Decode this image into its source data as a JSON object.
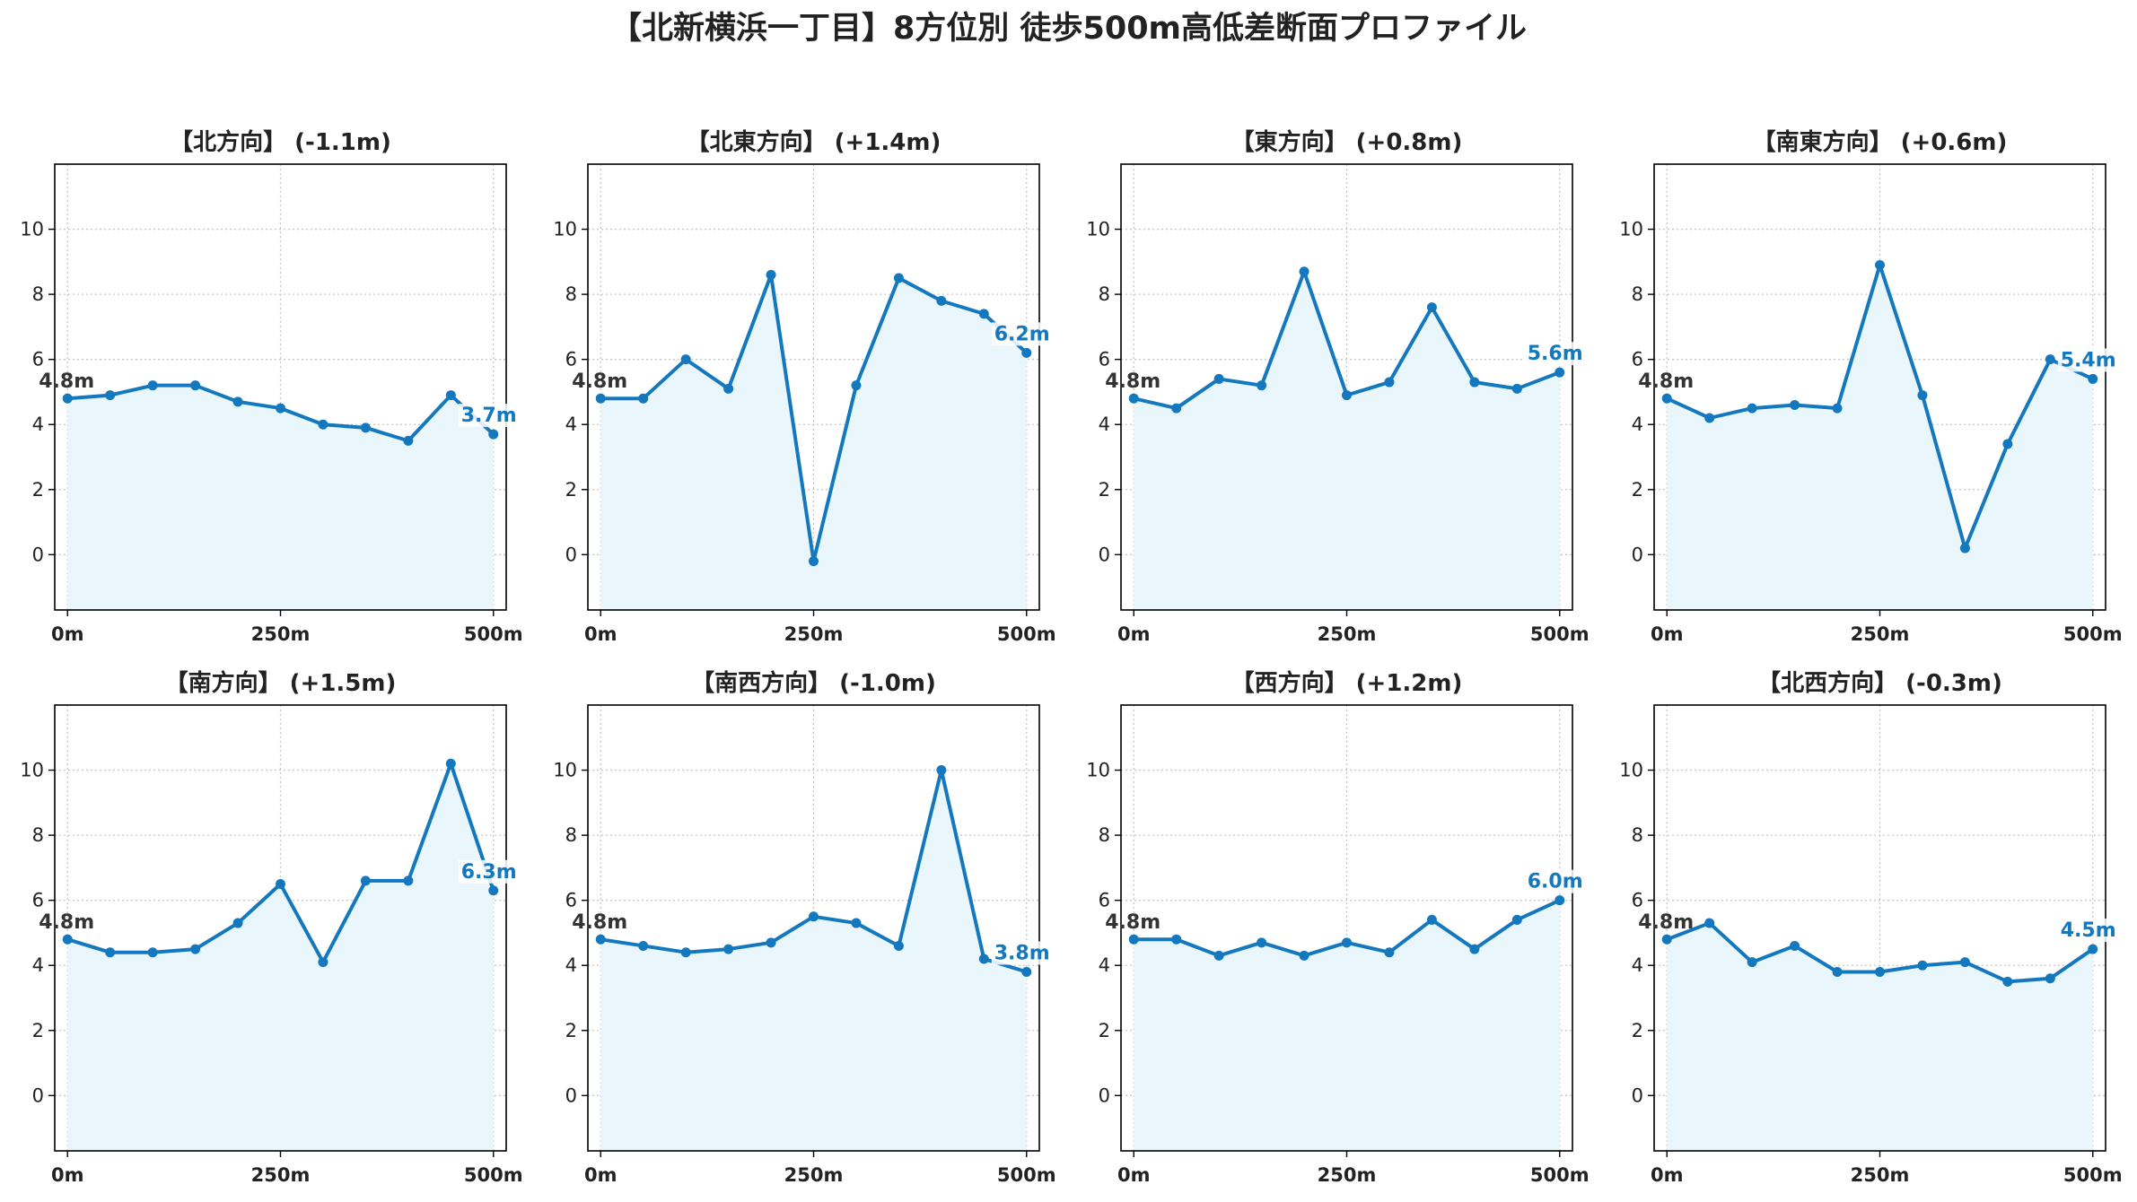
{
  "title": "【北新横浜一丁目】8方位別 徒歩500m高低差断面プロファイル",
  "colors": {
    "line": "#1478be",
    "fill": "#e9f6fb",
    "grid": "#c8c8c8",
    "start_label": "#333333"
  },
  "chart_data": [
    {
      "type": "area",
      "title": "【北方向】 (-1.1m)",
      "x": [
        0,
        50,
        100,
        150,
        200,
        250,
        300,
        350,
        400,
        450,
        500
      ],
      "values": [
        4.8,
        4.9,
        5.2,
        5.2,
        4.7,
        4.5,
        4.0,
        3.9,
        3.5,
        4.9,
        3.7
      ],
      "start_label": "4.8m",
      "end_label": "3.7m"
    },
    {
      "type": "area",
      "title": "【北東方向】 (+1.4m)",
      "x": [
        0,
        50,
        100,
        150,
        200,
        250,
        300,
        350,
        400,
        450,
        500
      ],
      "values": [
        4.8,
        4.8,
        6.0,
        5.1,
        8.6,
        -0.2,
        5.2,
        8.5,
        7.8,
        7.4,
        6.2
      ],
      "start_label": "4.8m",
      "end_label": "6.2m"
    },
    {
      "type": "area",
      "title": "【東方向】 (+0.8m)",
      "x": [
        0,
        50,
        100,
        150,
        200,
        250,
        300,
        350,
        400,
        450,
        500
      ],
      "values": [
        4.8,
        4.5,
        5.4,
        5.2,
        8.7,
        4.9,
        5.3,
        7.6,
        5.3,
        5.1,
        5.6
      ],
      "start_label": "4.8m",
      "end_label": "5.6m"
    },
    {
      "type": "area",
      "title": "【南東方向】 (+0.6m)",
      "x": [
        0,
        50,
        100,
        150,
        200,
        250,
        300,
        350,
        400,
        450,
        500
      ],
      "values": [
        4.8,
        4.2,
        4.5,
        4.6,
        4.5,
        8.9,
        4.9,
        0.2,
        3.4,
        6.0,
        5.4
      ],
      "start_label": "4.8m",
      "end_label": "5.4m"
    },
    {
      "type": "area",
      "title": "【南方向】 (+1.5m)",
      "x": [
        0,
        50,
        100,
        150,
        200,
        250,
        300,
        350,
        400,
        450,
        500
      ],
      "values": [
        4.8,
        4.4,
        4.4,
        4.5,
        5.3,
        6.5,
        4.1,
        6.6,
        6.6,
        10.2,
        6.3
      ],
      "start_label": "4.8m",
      "end_label": "6.3m"
    },
    {
      "type": "area",
      "title": "【南西方向】 (-1.0m)",
      "x": [
        0,
        50,
        100,
        150,
        200,
        250,
        300,
        350,
        400,
        450,
        500
      ],
      "values": [
        4.8,
        4.6,
        4.4,
        4.5,
        4.7,
        5.5,
        5.3,
        4.6,
        10.0,
        4.2,
        3.8
      ],
      "start_label": "4.8m",
      "end_label": "3.8m"
    },
    {
      "type": "area",
      "title": "【西方向】 (+1.2m)",
      "x": [
        0,
        50,
        100,
        150,
        200,
        250,
        300,
        350,
        400,
        450,
        500
      ],
      "values": [
        4.8,
        4.8,
        4.3,
        4.7,
        4.3,
        4.7,
        4.4,
        5.4,
        4.5,
        5.4,
        6.0
      ],
      "start_label": "4.8m",
      "end_label": "6.0m"
    },
    {
      "type": "area",
      "title": "【北西方向】 (-0.3m)",
      "x": [
        0,
        50,
        100,
        150,
        200,
        250,
        300,
        350,
        400,
        450,
        500
      ],
      "values": [
        4.8,
        5.3,
        4.1,
        4.6,
        3.8,
        3.8,
        4.0,
        4.1,
        3.5,
        3.6,
        4.5
      ],
      "start_label": "4.8m",
      "end_label": "4.5m"
    }
  ],
  "axes": {
    "ylim": [
      -1.7,
      12
    ],
    "xlim": [
      -15,
      515
    ],
    "yticks": [
      0,
      2,
      4,
      6,
      8,
      10
    ],
    "xticks": [
      {
        "value": 0,
        "label": "0m"
      },
      {
        "value": 250,
        "label": "250m"
      },
      {
        "value": 500,
        "label": "500m"
      }
    ],
    "grid": "dotted"
  }
}
